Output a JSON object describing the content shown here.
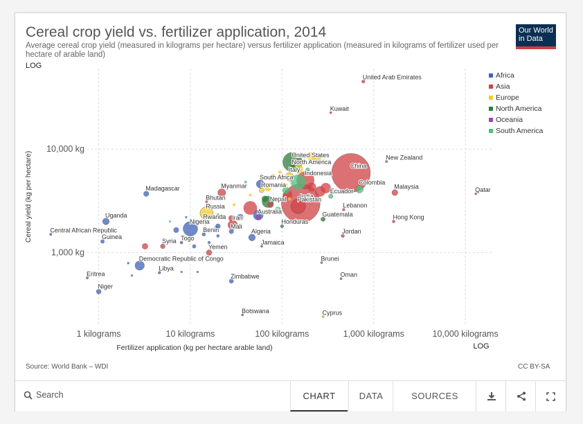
{
  "title": "Cereal crop yield vs. fertilizer application, 2014",
  "subtitle": "Average cereal crop yield (measured in kilograms per hectare) versus fertilizer application (measured in kilograms of fertilizer used per hectare of arable land)",
  "logo": {
    "line1": "Our World",
    "line2": "in Data"
  },
  "source": "Source: World Bank – WDI",
  "license": "CC BY-SA",
  "controls": {
    "search_label": "Search",
    "tabs": [
      "CHART",
      "DATA",
      "SOURCES"
    ],
    "icons": [
      "download-icon",
      "share-icon",
      "fullscreen-icon"
    ]
  },
  "chart_data": {
    "type": "scatter",
    "xlabel": "Fertilizer application (kg per hectare arable land)",
    "ylabel": "Cereal yield (kg per hectare)",
    "x_scale": "LOG",
    "y_scale": "LOG",
    "xlim": [
      0.2,
      20000
    ],
    "ylim": [
      200,
      60000
    ],
    "x_ticks": [
      {
        "value": 1,
        "label": "1 kilograms"
      },
      {
        "value": 10,
        "label": "10 kilograms"
      },
      {
        "value": 100,
        "label": "100 kilograms"
      },
      {
        "value": 1000,
        "label": "1,000 kilograms"
      },
      {
        "value": 10000,
        "label": "10,000 kilograms"
      }
    ],
    "y_ticks": [
      {
        "value": 1000,
        "label": "1,000 kg"
      },
      {
        "value": 10000,
        "label": "10,000 kg"
      }
    ],
    "grid": true,
    "legend_position": "top-right",
    "legend": [
      {
        "name": "Africa",
        "color": "#3f63ba"
      },
      {
        "name": "Asia",
        "color": "#d04146"
      },
      {
        "name": "Europe",
        "color": "#f2cc2e"
      },
      {
        "name": "North America",
        "color": "#2e7d3a"
      },
      {
        "name": "Oceania",
        "color": "#9a46b7"
      },
      {
        "name": "South America",
        "color": "#4fbf7e"
      }
    ],
    "points": [
      {
        "label": "United Arab Emirates",
        "region": "Asia",
        "x": 770,
        "y": 45000,
        "pop": 9
      },
      {
        "label": "Kuwait",
        "region": "Asia",
        "x": 340,
        "y": 22500,
        "pop": 4
      },
      {
        "label": "United States",
        "region": "North America",
        "x": 130,
        "y": 7500,
        "pop": 320
      },
      {
        "label": "North America",
        "region": "North America",
        "x": 130,
        "y": 6600,
        "pop": 30
      },
      {
        "label": "China",
        "region": "Asia",
        "x": 565,
        "y": 5900,
        "pop": 1370
      },
      {
        "label": "New Zealand",
        "region": "Oceania",
        "x": 1380,
        "y": 7600,
        "pop": 5
      },
      {
        "label": "Italy",
        "region": "Europe",
        "x": 120,
        "y": 5400,
        "pop": 60
      },
      {
        "label": "Indonesia",
        "region": "Asia",
        "x": 180,
        "y": 5000,
        "pop": 255
      },
      {
        "label": "South Africa",
        "region": "Africa",
        "x": 58,
        "y": 4600,
        "pop": 55
      },
      {
        "label": "Romania",
        "region": "Europe",
        "x": 60,
        "y": 4000,
        "pop": 20
      },
      {
        "label": "India",
        "region": "Asia",
        "x": 160,
        "y": 3000,
        "pop": 1300
      },
      {
        "label": "Ecuador",
        "region": "South America",
        "x": 340,
        "y": 3500,
        "pop": 16
      },
      {
        "label": "Colombia",
        "region": "South America",
        "x": 700,
        "y": 4100,
        "pop": 48
      },
      {
        "label": "Malaysia",
        "region": "Asia",
        "x": 1700,
        "y": 3800,
        "pop": 30
      },
      {
        "label": "Qatar",
        "region": "Asia",
        "x": 13000,
        "y": 3700,
        "pop": 2
      },
      {
        "label": "Madagascar",
        "region": "Africa",
        "x": 3.3,
        "y": 3700,
        "pop": 24
      },
      {
        "label": "Myanmar",
        "region": "Asia",
        "x": 22,
        "y": 3800,
        "pop": 53
      },
      {
        "label": "Bhutan",
        "region": "Asia",
        "x": 15,
        "y": 3100,
        "pop": 1
      },
      {
        "label": "Pakistan",
        "region": "Asia",
        "x": 150,
        "y": 2800,
        "pop": 190
      },
      {
        "label": "Nepal",
        "region": "Asia",
        "x": 75,
        "y": 2900,
        "pop": 28
      },
      {
        "label": "Lebanon",
        "region": "Asia",
        "x": 470,
        "y": 2600,
        "pop": 6
      },
      {
        "label": "Russia",
        "region": "Europe",
        "x": 15,
        "y": 2400,
        "pop": 145
      },
      {
        "label": "Australia",
        "region": "Oceania",
        "x": 55,
        "y": 2200,
        "pop": 24
      },
      {
        "label": "Guatemala",
        "region": "North America",
        "x": 280,
        "y": 2100,
        "pop": 16
      },
      {
        "label": "Hong Kong",
        "region": "Asia",
        "x": 1650,
        "y": 2000,
        "pop": 7
      },
      {
        "label": "Uganda",
        "region": "Africa",
        "x": 1.2,
        "y": 2000,
        "pop": 38
      },
      {
        "label": "Rwanda",
        "region": "Africa",
        "x": 14,
        "y": 2000,
        "pop": 11
      },
      {
        "label": "Iran",
        "region": "Asia",
        "x": 29,
        "y": 1850,
        "pop": 78
      },
      {
        "label": "Honduras",
        "region": "North America",
        "x": 100,
        "y": 1800,
        "pop": 9
      },
      {
        "label": "Nigeria",
        "region": "Africa",
        "x": 10,
        "y": 1700,
        "pop": 180
      },
      {
        "label": "Mali",
        "region": "Africa",
        "x": 28,
        "y": 1600,
        "pop": 17
      },
      {
        "label": "Benin",
        "region": "Africa",
        "x": 14,
        "y": 1500,
        "pop": 10
      },
      {
        "label": "Jordan",
        "region": "Asia",
        "x": 460,
        "y": 1450,
        "pop": 9
      },
      {
        "label": "Central African Republic",
        "region": "Africa",
        "x": 0.3,
        "y": 1500,
        "pop": 5
      },
      {
        "label": "Guinea",
        "region": "Africa",
        "x": 1.1,
        "y": 1280,
        "pop": 12
      },
      {
        "label": "Algeria",
        "region": "Africa",
        "x": 47,
        "y": 1400,
        "pop": 39
      },
      {
        "label": "Syria",
        "region": "Asia",
        "x": 5,
        "y": 1150,
        "pop": 19
      },
      {
        "label": "Togo",
        "region": "Africa",
        "x": 8,
        "y": 1250,
        "pop": 7
      },
      {
        "label": "Jamaica",
        "region": "North America",
        "x": 60,
        "y": 1150,
        "pop": 3
      },
      {
        "label": "Yemen",
        "region": "Asia",
        "x": 16,
        "y": 1000,
        "pop": 26
      },
      {
        "label": "Democratic Republic of Congo",
        "region": "Africa",
        "x": 2.8,
        "y": 750,
        "pop": 75
      },
      {
        "label": "Libya",
        "region": "Africa",
        "x": 4.6,
        "y": 640,
        "pop": 6
      },
      {
        "label": "Brunei",
        "region": "Asia",
        "x": 270,
        "y": 800,
        "pop": 1
      },
      {
        "label": "Eritrea",
        "region": "Africa",
        "x": 0.75,
        "y": 570,
        "pop": 5
      },
      {
        "label": "Zimbabwe",
        "region": "Africa",
        "x": 28,
        "y": 530,
        "pop": 15
      },
      {
        "label": "Oman",
        "region": "Asia",
        "x": 440,
        "y": 560,
        "pop": 4
      },
      {
        "label": "Niger",
        "region": "Africa",
        "x": 1.0,
        "y": 420,
        "pop": 20
      },
      {
        "label": "Botswana",
        "region": "Africa",
        "x": 37,
        "y": 250,
        "pop": 2
      },
      {
        "label": "Cyprus",
        "region": "Europe",
        "x": 280,
        "y": 240,
        "pop": 1
      },
      {
        "label": "",
        "region": "Asia",
        "x": 260,
        "y": 3900,
        "pop": 95
      },
      {
        "label": "",
        "region": "Asia",
        "x": 210,
        "y": 4300,
        "pop": 70
      },
      {
        "label": "",
        "region": "Europe",
        "x": 210,
        "y": 8500,
        "pop": 65
      },
      {
        "label": "",
        "region": "Europe",
        "x": 240,
        "y": 7800,
        "pop": 64
      },
      {
        "label": "",
        "region": "Europe",
        "x": 150,
        "y": 6400,
        "pop": 80
      },
      {
        "label": "",
        "region": "Europe",
        "x": 95,
        "y": 6000,
        "pop": 10
      },
      {
        "label": "",
        "region": "Europe",
        "x": 80,
        "y": 5500,
        "pop": 17
      },
      {
        "label": "",
        "region": "Europe",
        "x": 70,
        "y": 4200,
        "pop": 38
      },
      {
        "label": "",
        "region": "Europe",
        "x": 110,
        "y": 4500,
        "pop": 11
      },
      {
        "label": "",
        "region": "Europe",
        "x": 45,
        "y": 3600,
        "pop": 8
      },
      {
        "label": "",
        "region": "Europe",
        "x": 30,
        "y": 2900,
        "pop": 9
      },
      {
        "label": "",
        "region": "Europe",
        "x": 120,
        "y": 3300,
        "pop": 10
      },
      {
        "label": "",
        "region": "North America",
        "x": 65,
        "y": 3300,
        "pop": 35
      },
      {
        "label": "",
        "region": "North America",
        "x": 70,
        "y": 3100,
        "pop": 122
      },
      {
        "label": "",
        "region": "South America",
        "x": 150,
        "y": 4800,
        "pop": 200
      },
      {
        "label": "",
        "region": "South America",
        "x": 110,
        "y": 4000,
        "pop": 43
      },
      {
        "label": "",
        "region": "South America",
        "x": 40,
        "y": 4800,
        "pop": 7
      },
      {
        "label": "",
        "region": "South America",
        "x": 90,
        "y": 2600,
        "pop": 31
      },
      {
        "label": "",
        "region": "South America",
        "x": 20,
        "y": 2300,
        "pop": 11
      },
      {
        "label": "",
        "region": "South America",
        "x": 6,
        "y": 2000,
        "pop": 1
      },
      {
        "label": "",
        "region": "South America",
        "x": 190,
        "y": 6300,
        "pop": 18
      },
      {
        "label": "",
        "region": "Asia",
        "x": 300,
        "y": 4200,
        "pop": 92
      },
      {
        "label": "",
        "region": "Asia",
        "x": 45,
        "y": 2700,
        "pop": 160
      },
      {
        "label": "",
        "region": "Asia",
        "x": 115,
        "y": 3600,
        "pop": 77
      },
      {
        "label": "",
        "region": "Asia",
        "x": 28,
        "y": 2150,
        "pop": 30
      },
      {
        "label": "",
        "region": "Asia",
        "x": 3.2,
        "y": 1150,
        "pop": 33
      },
      {
        "label": "",
        "region": "Africa",
        "x": 11,
        "y": 1150,
        "pop": 14
      },
      {
        "label": "",
        "region": "Africa",
        "x": 20,
        "y": 1450,
        "pop": 9
      },
      {
        "label": "",
        "region": "Africa",
        "x": 8,
        "y": 650,
        "pop": 4
      },
      {
        "label": "",
        "region": "Africa",
        "x": 12,
        "y": 650,
        "pop": 4
      },
      {
        "label": "",
        "region": "Africa",
        "x": 2.1,
        "y": 790,
        "pop": 5
      },
      {
        "label": "",
        "region": "Africa",
        "x": 2.3,
        "y": 600,
        "pop": 3
      },
      {
        "label": "",
        "region": "Africa",
        "x": 7,
        "y": 1650,
        "pop": 27
      },
      {
        "label": "",
        "region": "Africa",
        "x": 9,
        "y": 2200,
        "pop": 4
      },
      {
        "label": "",
        "region": "Africa",
        "x": 19,
        "y": 1700,
        "pop": 24
      },
      {
        "label": "",
        "region": "Africa",
        "x": 35,
        "y": 2200,
        "pop": 35
      },
      {
        "label": "",
        "region": "Africa",
        "x": 20,
        "y": 1800,
        "pop": 23
      },
      {
        "label": "",
        "region": "Africa",
        "x": 16,
        "y": 1250,
        "pop": 8
      },
      {
        "label": "",
        "region": "Africa",
        "x": 55,
        "y": 2300,
        "pop": 90
      }
    ]
  }
}
